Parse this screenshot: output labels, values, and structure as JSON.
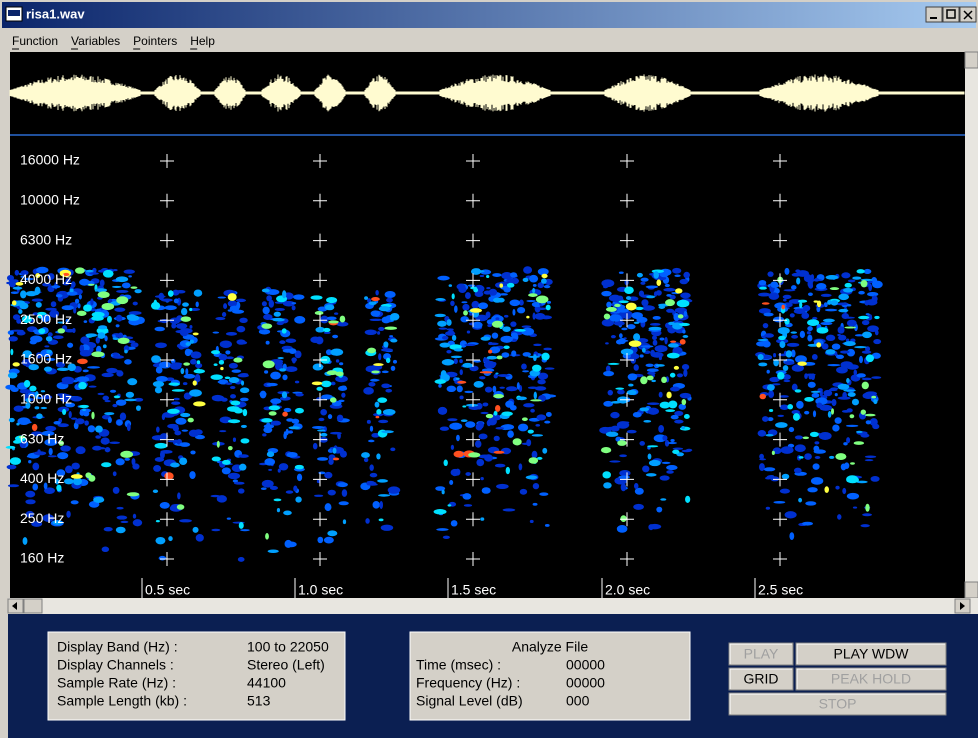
{
  "window": {
    "title": "risa1.wav"
  },
  "menu": [
    "Function",
    "Variables",
    "Pointers",
    "Help"
  ],
  "spectrogram": {
    "frequency_labels": [
      "16000 Hz",
      "10000 Hz",
      "6300 Hz",
      "4000 Hz",
      "2500 Hz",
      "1600 Hz",
      "1000 Hz",
      "630 Hz",
      "400 Hz",
      "250 Hz",
      "160 Hz"
    ],
    "time_labels": [
      "0.5 sec",
      "1.0 sec",
      "1.5 sec",
      "2.0 sec",
      "2.5 sec"
    ]
  },
  "file_info": {
    "rows": [
      [
        "Display Band (Hz) :",
        "100 to 22050"
      ],
      [
        "Display Channels :",
        "Stereo (Left)"
      ],
      [
        "Sample Rate (Hz) :",
        "44100"
      ],
      [
        "Sample Length (kb) :",
        "513"
      ]
    ]
  },
  "analyze": {
    "title": "Analyze File",
    "rows": [
      [
        "Time (msec) :",
        "00000"
      ],
      [
        "Frequency (Hz) :",
        "00000"
      ],
      [
        "Signal Level (dB)",
        "000"
      ]
    ]
  },
  "buttons": [
    {
      "label": "PLAY",
      "enabled": false
    },
    {
      "label": "PLAY WDW",
      "enabled": true
    },
    {
      "label": "GRID",
      "enabled": true
    },
    {
      "label": "PEAK HOLD",
      "enabled": false
    },
    {
      "label": "STOP",
      "enabled": false
    }
  ]
}
